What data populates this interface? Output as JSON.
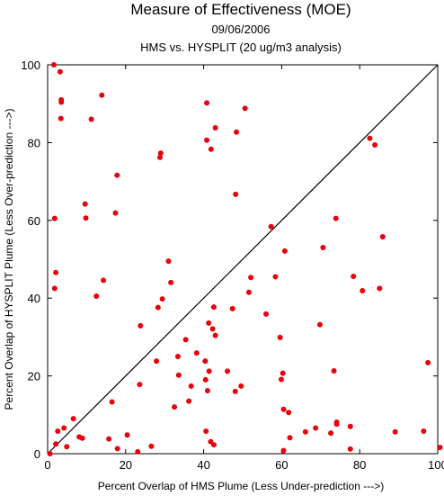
{
  "chart_data": {
    "type": "scatter",
    "title": "Measure of Effectiveness (MOE)",
    "subtitle_date": "09/06/2006",
    "subtitle_analysis": "HMS vs. HYSPLIT  (20 ug/m3 analysis)",
    "xlabel": "Percent Overlap of HMS Plume (Less Under-prediction --->)",
    "ylabel": "Percent Overlap of HYSPLIT Plume (Less Over-prediction --->)",
    "xlim": [
      0,
      100
    ],
    "ylim": [
      0,
      100
    ],
    "xticks": [
      0,
      20,
      40,
      60,
      80,
      100
    ],
    "yticks": [
      0,
      20,
      40,
      60,
      80,
      100
    ],
    "xtick_labels": [
      "0",
      "20",
      "40",
      "60",
      "80",
      "100"
    ],
    "ytick_labels": [
      "0",
      "20",
      "40",
      "60",
      "80",
      "100"
    ],
    "diagonal": [
      [
        0,
        0
      ],
      [
        100,
        100
      ]
    ],
    "point_color": "#e8000b",
    "grid": false,
    "points": [
      [
        1.6,
        100
      ],
      [
        3.2,
        98.2
      ],
      [
        3.5,
        91
      ],
      [
        3.5,
        90.4
      ],
      [
        3.4,
        86.2
      ],
      [
        11.2,
        86
      ],
      [
        13.9,
        92.2
      ],
      [
        17.8,
        71.6
      ],
      [
        29.0,
        77.3
      ],
      [
        28.8,
        76.2
      ],
      [
        40.8,
        90.2
      ],
      [
        43.0,
        83.8
      ],
      [
        40.8,
        80.6
      ],
      [
        41.9,
        78.3
      ],
      [
        48.4,
        82.7
      ],
      [
        50.6,
        88.8
      ],
      [
        48.2,
        66.7
      ],
      [
        1.8,
        60.5
      ],
      [
        9.6,
        64.2
      ],
      [
        9.8,
        60.6
      ],
      [
        17.4,
        61.9
      ],
      [
        2.1,
        46.6
      ],
      [
        1.8,
        42.5
      ],
      [
        12.5,
        40.5
      ],
      [
        14.3,
        44.6
      ],
      [
        31.0,
        49.5
      ],
      [
        31.6,
        44.0
      ],
      [
        28.3,
        37.6
      ],
      [
        29.4,
        39.8
      ],
      [
        42.6,
        37.7
      ],
      [
        47.4,
        37.3
      ],
      [
        52.1,
        45.3
      ],
      [
        51.6,
        41.5
      ],
      [
        57.3,
        58.4
      ],
      [
        60.8,
        52.1
      ],
      [
        58.4,
        45.5
      ],
      [
        70.6,
        53.0
      ],
      [
        73.9,
        60.5
      ],
      [
        85.9,
        55.8
      ],
      [
        78.4,
        45.6
      ],
      [
        80.7,
        41.9
      ],
      [
        85.1,
        42.5
      ],
      [
        82.6,
        81.1
      ],
      [
        83.9,
        79.4
      ],
      [
        69.8,
        33.2
      ],
      [
        56.0,
        35.9
      ],
      [
        59.6,
        29.9
      ],
      [
        41.3,
        33.6
      ],
      [
        42.3,
        32.1
      ],
      [
        43.0,
        30.4
      ],
      [
        35.4,
        29.3
      ],
      [
        23.8,
        32.9
      ],
      [
        33.4,
        25.0
      ],
      [
        38.2,
        25.9
      ],
      [
        36.8,
        17.4
      ],
      [
        33.6,
        20.2
      ],
      [
        36.2,
        13.5
      ],
      [
        32.5,
        12.0
      ],
      [
        40.4,
        23.8
      ],
      [
        41.4,
        21.2
      ],
      [
        46.1,
        21.2
      ],
      [
        49.6,
        17.4
      ],
      [
        48.1,
        16.0
      ],
      [
        40.5,
        19.0
      ],
      [
        41.0,
        16.2
      ],
      [
        60.3,
        20.7
      ],
      [
        59.9,
        19.1
      ],
      [
        73.4,
        21.3
      ],
      [
        97.5,
        23.4
      ],
      [
        23.6,
        17.8
      ],
      [
        16.5,
        13.3
      ],
      [
        27.9,
        23.8
      ],
      [
        0.6,
        0
      ],
      [
        2.1,
        2.5
      ],
      [
        2.6,
        5.8
      ],
      [
        4.2,
        6.6
      ],
      [
        6.6,
        9.0
      ],
      [
        4.9,
        1.8
      ],
      [
        8.1,
        4.3
      ],
      [
        8.9,
        4.0
      ],
      [
        15.7,
        3.8
      ],
      [
        17.9,
        1.3
      ],
      [
        20.4,
        4.8
      ],
      [
        23.1,
        0.5
      ],
      [
        26.6,
        1.9
      ],
      [
        40.6,
        5.8
      ],
      [
        41.8,
        3.1
      ],
      [
        42.6,
        2.3
      ],
      [
        60.5,
        0.8
      ],
      [
        60.5,
        11.4
      ],
      [
        61.8,
        10.6
      ],
      [
        62.1,
        4.1
      ],
      [
        66.1,
        5.6
      ],
      [
        68.7,
        6.6
      ],
      [
        72.6,
        5.3
      ],
      [
        74.1,
        7.6
      ],
      [
        74.1,
        8.1
      ],
      [
        77.6,
        7.0
      ],
      [
        77.6,
        1.2
      ],
      [
        89.1,
        5.6
      ],
      [
        96.4,
        5.8
      ],
      [
        100.6,
        1.6
      ]
    ]
  }
}
